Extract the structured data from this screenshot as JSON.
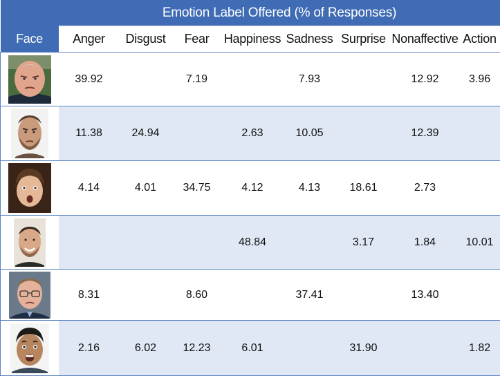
{
  "table": {
    "title": "Emotion Label Offered (% of Responses)",
    "face_header": "Face",
    "columns": [
      "Anger",
      "Disgust",
      "Fear",
      "Happiness",
      "Sadness",
      "Surprise",
      "Nonaffective",
      "Action"
    ],
    "rows": [
      {
        "cells": [
          "39.92",
          "",
          "7.19",
          "",
          "7.93",
          "",
          "12.92",
          "3.96"
        ]
      },
      {
        "cells": [
          "11.38",
          "24.94",
          "",
          "2.63",
          "10.05",
          "",
          "12.39",
          ""
        ]
      },
      {
        "cells": [
          "4.14",
          "4.01",
          "34.75",
          "4.12",
          "4.13",
          "18.61",
          "2.73",
          ""
        ]
      },
      {
        "cells": [
          "",
          "",
          "",
          "48.84",
          "",
          "3.17",
          "1.84",
          "10.01"
        ]
      },
      {
        "cells": [
          "8.31",
          "",
          "8.60",
          "",
          "37.41",
          "",
          "13.40",
          ""
        ]
      },
      {
        "cells": [
          "2.16",
          "6.02",
          "12.23",
          "6.01",
          "",
          "31.90",
          "",
          "1.82"
        ]
      }
    ]
  },
  "colors": {
    "header_blue": "#3f6cb4",
    "stripe": "#dfe8f4",
    "rule": "#5b82c2"
  }
}
